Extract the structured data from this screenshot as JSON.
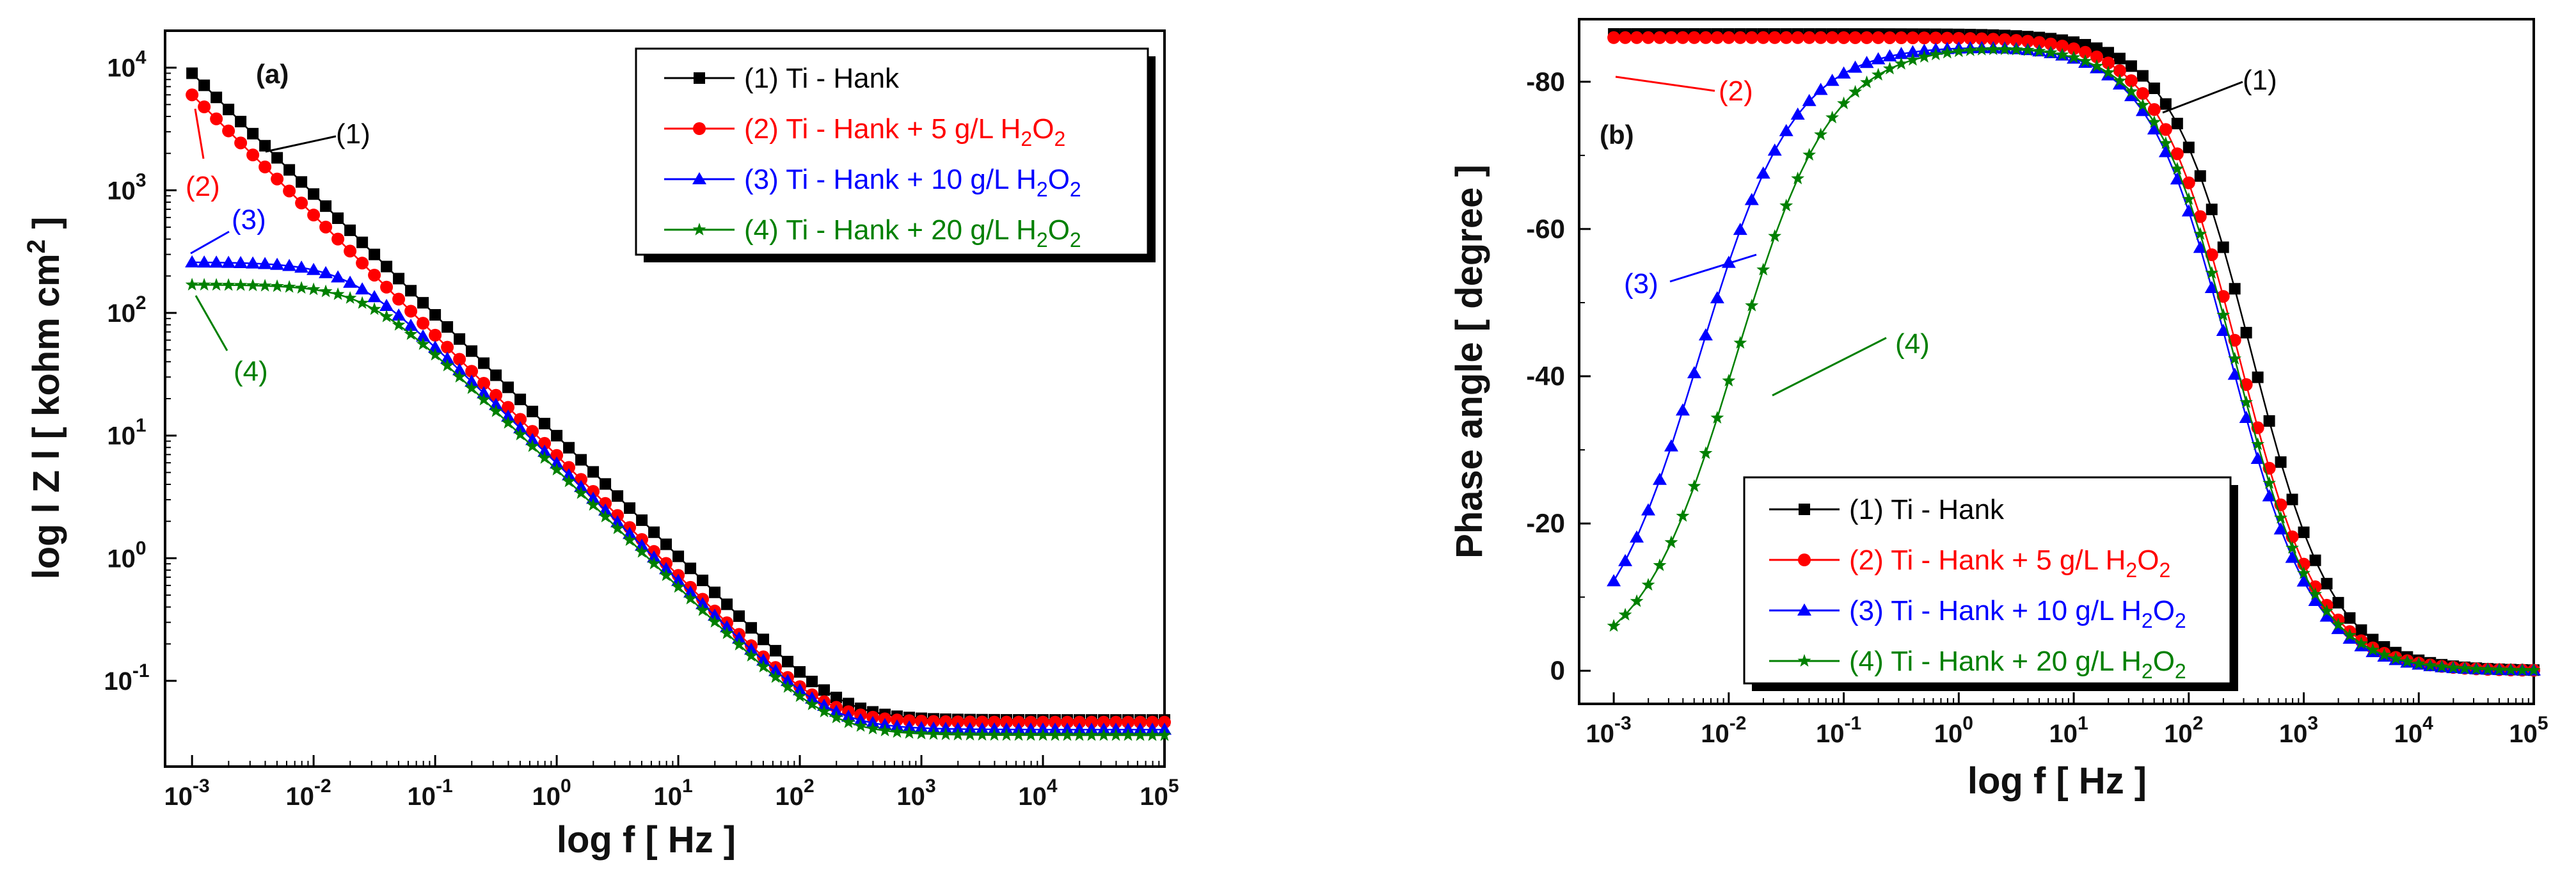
{
  "colors": {
    "s1": "#000000",
    "s2": "#ff0000",
    "s3": "#0000ff",
    "s4": "#008000"
  },
  "chart_data": [
    {
      "type": "line",
      "title": "",
      "panel_label": "(a)",
      "xlabel": "log f [ Hz ]",
      "ylabel": "log l Z l [ kohm cm",
      "ylabel_sup": "2",
      "ylabel_end": " ]",
      "xscale": "log",
      "yscale": "log",
      "xlim": [
        0.0006,
        100000
      ],
      "ylim": [
        0.02,
        20000
      ],
      "xtick_exps": [
        "-3",
        "-2",
        "-1",
        "0",
        "1",
        "2",
        "3",
        "4",
        "5"
      ],
      "ytick_exps": [
        "4",
        "3",
        "2",
        "1",
        "0",
        "-1"
      ],
      "legend_loc": "top-right",
      "series": [
        {
          "name": "(1) Ti - Hank",
          "label_main": "(1) Ti - Hank",
          "label_sub": "",
          "label_tail": "",
          "color": "#000000",
          "marker": "square",
          "model": "z",
          "params": {
            "ra": 9000,
            "n": 0.985,
            "rl": 1000000000.0,
            "rs": 0.048
          }
        },
        {
          "name": "(2) Ti - Hank + 5 g/L H2O2",
          "label_main": "(2) Ti - Hank + 5 g/L H",
          "label_sub": "2",
          "label_mid": "O",
          "label_tail": "2",
          "color": "#ff0000",
          "marker": "circle",
          "model": "z",
          "params": {
            "ra": 6000,
            "n": 0.98,
            "rl": 1000000000.0,
            "rs": 0.046
          }
        },
        {
          "name": "(3) Ti - Hank + 10 g/L H2O2",
          "label_main": "(3) Ti - Hank + 10 g/L H",
          "label_sub": "2",
          "label_mid": "O",
          "label_tail": "2",
          "color": "#0000ff",
          "marker": "triangle",
          "model": "z",
          "params": {
            "ra": 4500,
            "n": 0.96,
            "rl": 260,
            "rs": 0.04
          }
        },
        {
          "name": "(4) Ti - Hank + 20 g/L H2O2",
          "label_main": "(4) Ti - Hank + 20 g/L H",
          "label_sub": "2",
          "label_mid": "O",
          "label_tail": "2",
          "color": "#008000",
          "marker": "star",
          "model": "z",
          "params": {
            "ra": 4000,
            "n": 0.96,
            "rl": 170,
            "rs": 0.036
          }
        }
      ],
      "annotations": [
        "(1)",
        "(2)",
        "(3)",
        "(4)"
      ]
    },
    {
      "type": "line",
      "title": "",
      "panel_label": "(b)",
      "xlabel": "log f [ Hz ]",
      "ylabel": "Phase angle [ degree ]",
      "xscale": "log",
      "yscale": "linear",
      "xlim": [
        0.0005,
        100000
      ],
      "ylim": [
        -88.5,
        4.5
      ],
      "xtick_exps": [
        "-3",
        "-2",
        "-1",
        "0",
        "1",
        "2",
        "3",
        "4",
        "5"
      ],
      "yticks": [
        "-80",
        "-60",
        "-40",
        "-20",
        "0"
      ],
      "legend_loc": "bottom-center",
      "series": [
        {
          "name": "(1) Ti - Hank",
          "label_main": "(1) Ti - Hank",
          "label_sub": "",
          "label_tail": "",
          "color": "#000000",
          "marker": "square",
          "model": "phase",
          "params": {
            "max": -86.5,
            "flo": 0,
            "fhi": 350
          }
        },
        {
          "name": "(2) Ti - Hank + 5 g/L H2O2",
          "label_main": "(2) Ti - Hank + 5 g/L H",
          "label_sub": "2",
          "label_mid": "O",
          "label_tail": "2",
          "color": "#ff0000",
          "marker": "circle",
          "model": "phase",
          "params": {
            "max": -86,
            "flo": 0,
            "fhi": 270
          }
        },
        {
          "name": "(3) Ti - Hank + 10 g/L H2O2",
          "label_main": "(3) Ti - Hank + 10 g/L H",
          "label_sub": "2",
          "label_mid": "O",
          "label_tail": "2",
          "color": "#0000ff",
          "marker": "triangle",
          "model": "phase",
          "params": {
            "max": -85,
            "flo": 0.0055,
            "fhi": 230
          }
        },
        {
          "name": "(4) Ti - Hank + 20 g/L H2O2",
          "label_main": "(4) Ti - Hank + 20 g/L H",
          "label_sub": "2",
          "label_mid": "O",
          "label_tail": "2",
          "color": "#008000",
          "marker": "star",
          "model": "phase",
          "params": {
            "max": -85,
            "flo": 0.0115,
            "fhi": 250
          }
        }
      ],
      "annotations": [
        "(1)",
        "(2)",
        "(3)",
        "(4)"
      ]
    }
  ]
}
